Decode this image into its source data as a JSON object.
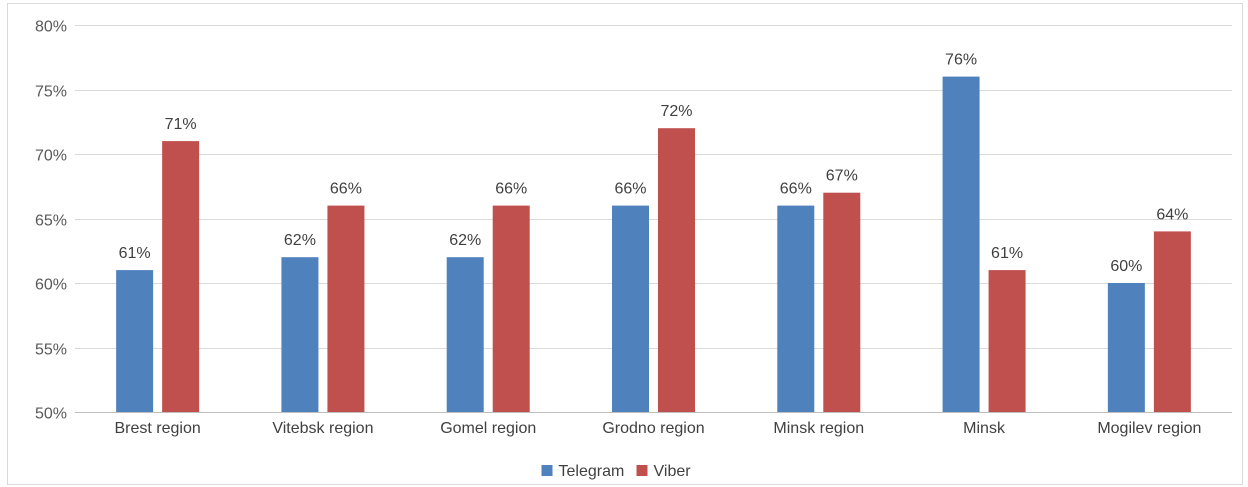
{
  "chart_data": {
    "type": "bar",
    "categories": [
      "Brest region",
      "Vitebsk region",
      "Gomel region",
      "Grodno region",
      "Minsk region",
      "Minsk",
      "Mogilev region"
    ],
    "series": [
      {
        "name": "Telegram",
        "values": [
          61,
          62,
          62,
          66,
          66,
          76,
          60
        ],
        "labels": [
          "61%",
          "62%",
          "62%",
          "66%",
          "66%",
          "76%",
          "60%"
        ],
        "color": "#4f81bd"
      },
      {
        "name": "Viber",
        "values": [
          71,
          66,
          66,
          72,
          67,
          61,
          64
        ],
        "labels": [
          "71%",
          "66%",
          "66%",
          "72%",
          "67%",
          "61%",
          "64%"
        ],
        "color": "#c0504d"
      }
    ],
    "ylim": [
      50,
      80
    ],
    "yticks": [
      50,
      55,
      60,
      65,
      70,
      75,
      80
    ],
    "ytick_labels": [
      "50%",
      "55%",
      "60%",
      "65%",
      "70%",
      "75%",
      "80%"
    ],
    "grid": true,
    "legend_position": "bottom"
  }
}
